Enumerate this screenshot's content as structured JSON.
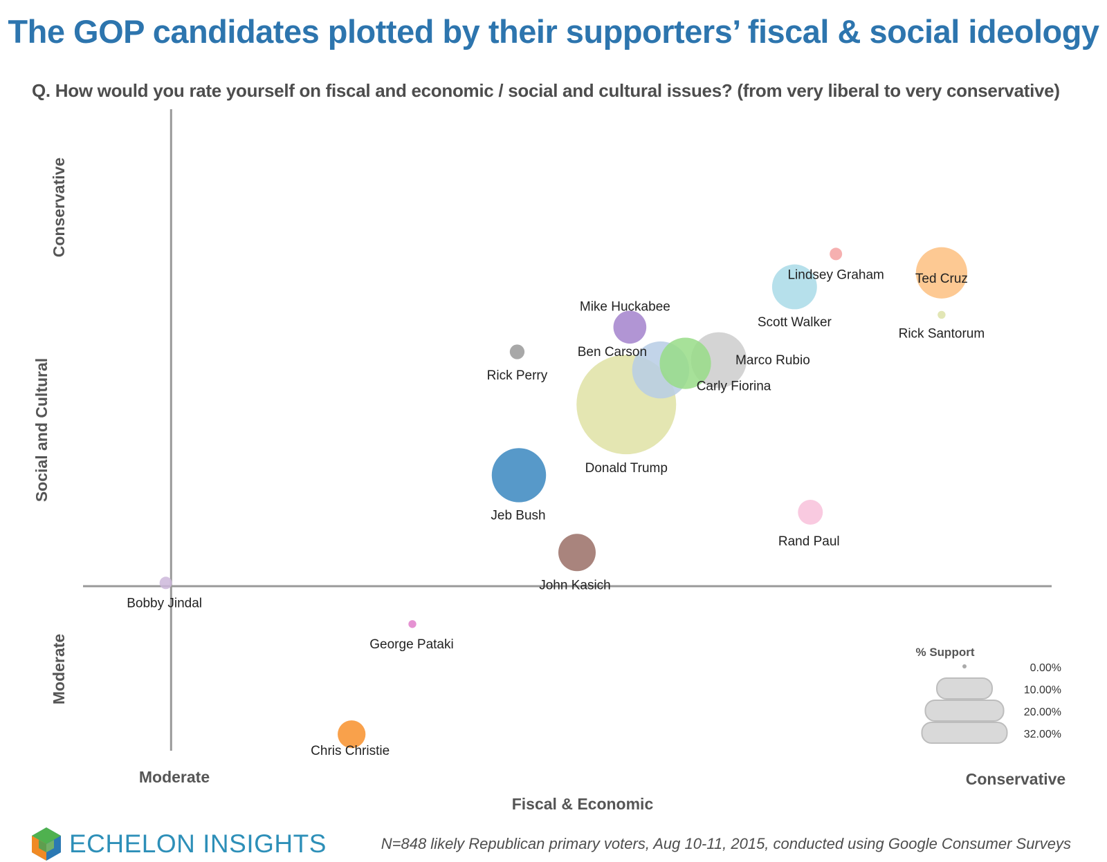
{
  "title": "The GOP candidates plotted by their supporters’ fiscal & social ideology",
  "subtitle": "Q. How would you rate yourself on fiscal and economic / social and cultural issues? (from very liberal to very conservative)",
  "footer_note": "N=848 likely Republican primary voters, Aug 10-11, 2015, conducted using Google Consumer Surveys",
  "logo_text": "ECHELON INSIGHTS",
  "axes": {
    "x_title": "Fiscal & Economic",
    "x_left_label": "Moderate",
    "x_right_label": "Conservative",
    "y_title": "Social and Cultural",
    "y_top_label": "Conservative",
    "y_bottom_label": "Moderate"
  },
  "legend": {
    "title": "% Support",
    "items": [
      {
        "label": "0.00%",
        "value": 0
      },
      {
        "label": "10.00%",
        "value": 10
      },
      {
        "label": "20.00%",
        "value": 20
      },
      {
        "label": "32.00%",
        "value": 32
      }
    ]
  },
  "chart_data": {
    "type": "scatter",
    "title": "The GOP candidates plotted by their supporters’ fiscal & social ideology",
    "xlabel": "Fiscal & Economic",
    "ylabel": "Social and Cultural",
    "size_label": "% Support",
    "xlim": [
      -10,
      100
    ],
    "ylim": [
      -20,
      58
    ],
    "grid": false,
    "legend_position": "bottom-right",
    "points": [
      {
        "name": "Ted Cruz",
        "x": 87.5,
        "y": 38.1,
        "support": 8.5,
        "color": "#fdbf80"
      },
      {
        "name": "Lindsey Graham",
        "x": 75.5,
        "y": 40.4,
        "support": 0.5,
        "color": "#f4a2a2"
      },
      {
        "name": "Scott Walker",
        "x": 70.8,
        "y": 36.4,
        "support": 6.5,
        "color": "#a9dbe7"
      },
      {
        "name": "Rick Santorum",
        "x": 87.5,
        "y": 33.0,
        "support": 0.2,
        "color": "#dde2a8"
      },
      {
        "name": "Mike Huckabee",
        "x": 52.1,
        "y": 31.5,
        "support": 3.5,
        "color": "#a382cd"
      },
      {
        "name": "Rick Perry",
        "x": 39.3,
        "y": 28.5,
        "support": 0.7,
        "color": "#999999"
      },
      {
        "name": "Marco Rubio",
        "x": 62.2,
        "y": 27.5,
        "support": 10.0,
        "color": "#cccccc"
      },
      {
        "name": "Carly Fiorina",
        "x": 58.4,
        "y": 27.1,
        "support": 8.5,
        "color": "#98dc87"
      },
      {
        "name": "Ben Carson",
        "x": 55.6,
        "y": 26.3,
        "support": 10.5,
        "color": "#b7cde5"
      },
      {
        "name": "Donald Trump",
        "x": 51.7,
        "y": 22.1,
        "support": 32.0,
        "color": "#dfe2a5"
      },
      {
        "name": "Jeb Bush",
        "x": 39.5,
        "y": 13.5,
        "support": 9.5,
        "color": "#3a87c0"
      },
      {
        "name": "Rand Paul",
        "x": 72.6,
        "y": 9.0,
        "support": 2.0,
        "color": "#f8c1da"
      },
      {
        "name": "John Kasich",
        "x": 46.1,
        "y": 4.1,
        "support": 4.5,
        "color": "#9a6f66"
      },
      {
        "name": "Bobby Jindal",
        "x": -0.6,
        "y": 0.4,
        "support": 0.5,
        "color": "#cdb7da"
      },
      {
        "name": "George Pataki",
        "x": 27.4,
        "y": -4.6,
        "support": 0.2,
        "color": "#e07fca"
      },
      {
        "name": "Chris Christie",
        "x": 20.5,
        "y": -18.0,
        "support": 2.5,
        "color": "#f8902b"
      }
    ]
  }
}
